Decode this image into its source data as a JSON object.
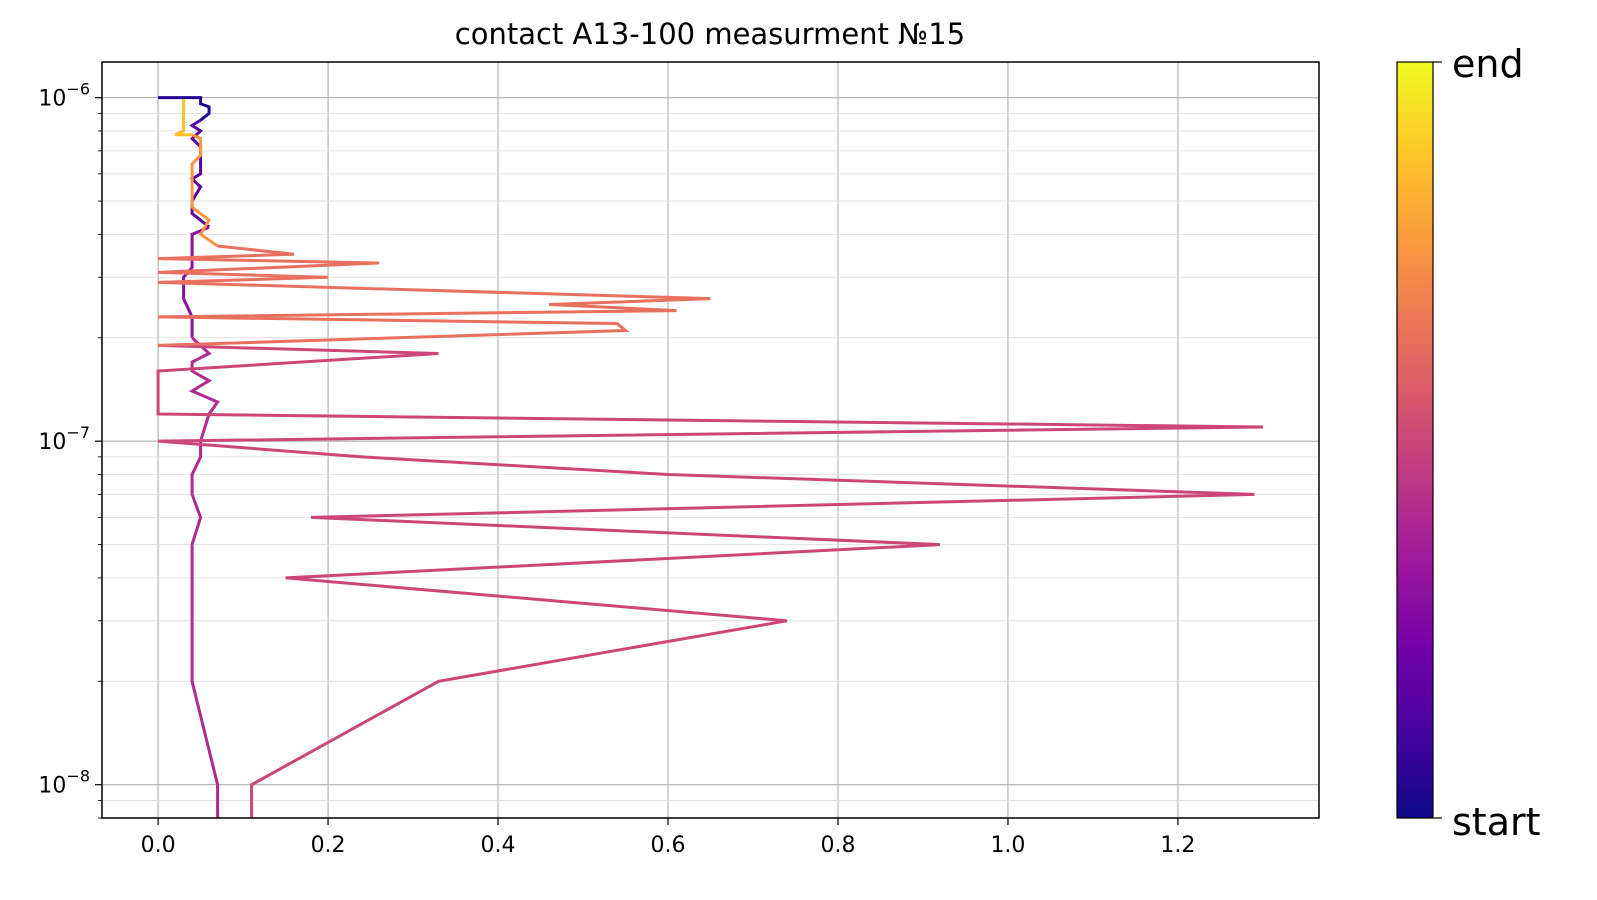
{
  "chart_data": {
    "type": "line",
    "title": "contact A13-100 measurment №15",
    "xlabel": "",
    "ylabel": "",
    "xlim": [
      -0.066,
      1.366
    ],
    "ylim": [
      8e-09,
      1.27e-06
    ],
    "y_scale": "log",
    "grid": true,
    "x_ticks": [
      0.0,
      0.2,
      0.4,
      0.6,
      0.8,
      1.0,
      1.2
    ],
    "x_tick_labels": [
      "0.0",
      "0.2",
      "0.4",
      "0.6",
      "0.8",
      "1.0",
      "1.2"
    ],
    "y_ticks": [
      1e-08,
      1e-07,
      1e-06
    ],
    "y_tick_labels": [
      {
        "base": "10",
        "exp": "−8"
      },
      {
        "base": "10",
        "exp": "−7"
      },
      {
        "base": "10",
        "exp": "−6"
      }
    ],
    "colorbar": {
      "colormap": "plasma",
      "labels": [
        "end",
        "start"
      ],
      "stops": [
        "#0d0887",
        "#46039f",
        "#7201a8",
        "#9c179e",
        "#bd3786",
        "#d8576b",
        "#ed7953",
        "#fb9f3a",
        "#fdca26",
        "#f0f921"
      ]
    },
    "series": [
      {
        "color": "#220690",
        "points": [
          [
            0.0,
            1e-06
          ],
          [
            0.05,
            1e-06
          ],
          [
            0.05,
            9.6e-07
          ],
          [
            0.06,
            9.4e-07
          ],
          [
            0.06,
            9e-07
          ],
          [
            0.05,
            8.6e-07
          ]
        ]
      },
      {
        "color": "#5a02a3",
        "points": [
          [
            0.05,
            8.6e-07
          ],
          [
            0.04,
            8.3e-07
          ],
          [
            0.05,
            8e-07
          ],
          [
            0.04,
            7.6e-07
          ],
          [
            0.05,
            7.2e-07
          ],
          [
            0.05,
            6.5e-07
          ],
          [
            0.05,
            6e-07
          ],
          [
            0.04,
            5.8e-07
          ],
          [
            0.05,
            5.5e-07
          ],
          [
            0.04,
            5e-07
          ],
          [
            0.04,
            4.6e-07
          ],
          [
            0.05,
            4.4e-07
          ],
          [
            0.06,
            4.2e-07
          ]
        ]
      },
      {
        "color": "#8a10a2",
        "points": [
          [
            0.06,
            4.2e-07
          ],
          [
            0.04,
            4e-07
          ],
          [
            0.04,
            3.5e-07
          ],
          [
            0.04,
            3.2e-07
          ],
          [
            0.03,
            3e-07
          ],
          [
            0.03,
            2.6e-07
          ],
          [
            0.04,
            2.3e-07
          ],
          [
            0.04,
            2e-07
          ]
        ]
      },
      {
        "color": "#b02a92",
        "points": [
          [
            0.04,
            2e-07
          ],
          [
            0.06,
            1.8e-07
          ],
          [
            0.04,
            1.7e-07
          ],
          [
            0.04,
            1.6e-07
          ],
          [
            0.06,
            1.5e-07
          ],
          [
            0.04,
            1.4e-07
          ],
          [
            0.07,
            1.3e-07
          ],
          [
            0.06,
            1.2e-07
          ],
          [
            0.05,
            1e-07
          ],
          [
            0.05,
            9e-08
          ],
          [
            0.04,
            8e-08
          ],
          [
            0.04,
            7e-08
          ],
          [
            0.05,
            6e-08
          ],
          [
            0.04,
            5e-08
          ],
          [
            0.04,
            3e-08
          ],
          [
            0.04,
            2e-08
          ],
          [
            0.07,
            1e-08
          ],
          [
            0.07,
            7e-09
          ]
        ]
      },
      {
        "color": "#cc4778",
        "points": [
          [
            0.11,
            7e-09
          ],
          [
            0.11,
            1e-08
          ],
          [
            0.33,
            2e-08
          ],
          [
            0.74,
            3e-08
          ],
          [
            0.15,
            4e-08
          ],
          [
            0.92,
            5e-08
          ],
          [
            0.18,
            6e-08
          ],
          [
            1.29,
            7e-08
          ],
          [
            0.6,
            8e-08
          ],
          [
            0.24,
            9e-08
          ],
          [
            0.0,
            1e-07
          ],
          [
            1.3,
            1.1e-07
          ],
          [
            0.0,
            1.2e-07
          ],
          [
            0.0,
            1.6e-07
          ],
          [
            0.33,
            1.8e-07
          ],
          [
            0.0,
            1.9e-07
          ]
        ]
      },
      {
        "color": "#e8705e",
        "points": [
          [
            0.0,
            1.9e-07
          ],
          [
            0.55,
            2.1e-07
          ],
          [
            0.54,
            2.2e-07
          ],
          [
            0.0,
            2.3e-07
          ],
          [
            0.61,
            2.4e-07
          ],
          [
            0.46,
            2.5e-07
          ],
          [
            0.65,
            2.6e-07
          ],
          [
            0.0,
            2.9e-07
          ],
          [
            0.2,
            3e-07
          ],
          [
            0.0,
            3.1e-07
          ],
          [
            0.26,
            3.3e-07
          ],
          [
            0.0,
            3.4e-07
          ],
          [
            0.16,
            3.5e-07
          ],
          [
            0.07,
            3.7e-07
          ]
        ]
      },
      {
        "color": "#f9963f",
        "points": [
          [
            0.07,
            3.7e-07
          ],
          [
            0.05,
            4e-07
          ],
          [
            0.06,
            4.4e-07
          ],
          [
            0.04,
            4.8e-07
          ],
          [
            0.04,
            6.4e-07
          ],
          [
            0.05,
            6.8e-07
          ],
          [
            0.05,
            7.6e-07
          ],
          [
            0.04,
            7.8e-07
          ]
        ]
      },
      {
        "color": "#fdbf28",
        "points": [
          [
            0.04,
            7.8e-07
          ],
          [
            0.02,
            7.8e-07
          ],
          [
            0.03,
            8e-07
          ],
          [
            0.03,
            9.9e-07
          ]
        ]
      }
    ]
  }
}
